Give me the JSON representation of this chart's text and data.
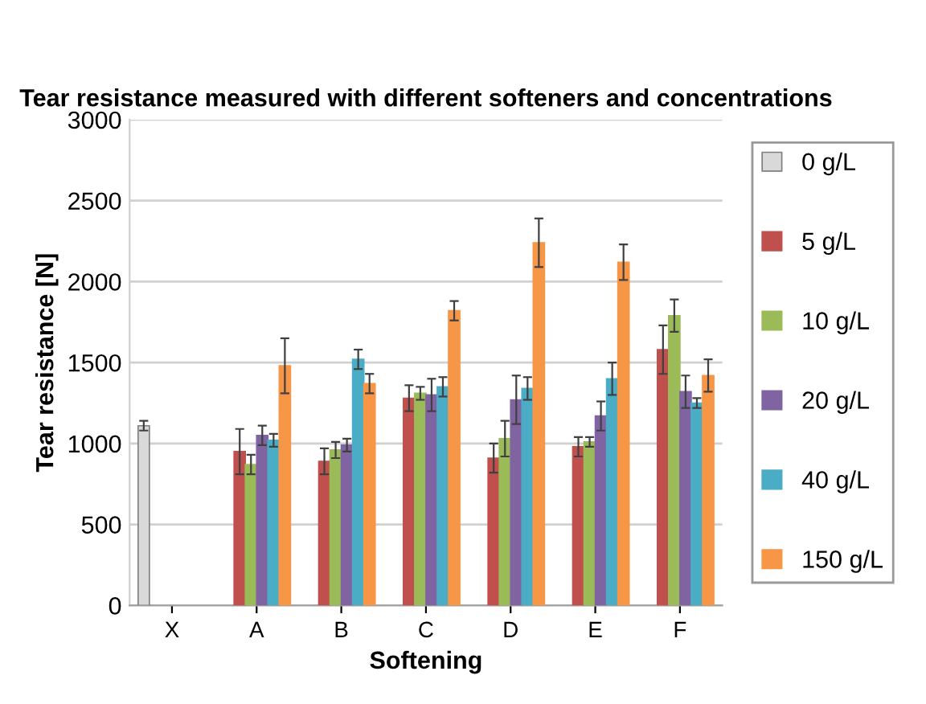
{
  "chart_data": {
    "type": "bar",
    "title": "Tear resistance measured with different softeners and concentrations",
    "xlabel": "Softening",
    "ylabel": "Tear resistance [N]",
    "categories": [
      "X",
      "A",
      "B",
      "C",
      "D",
      "E",
      "F"
    ],
    "series": [
      {
        "name": "0 g/L",
        "color": "#d9d9d9",
        "values": [
          1110,
          null,
          null,
          null,
          null,
          null,
          null
        ],
        "errors": [
          30,
          null,
          null,
          null,
          null,
          null,
          null
        ]
      },
      {
        "name": "5 g/L",
        "color": "#c0504d",
        "values": [
          null,
          950,
          890,
          1280,
          910,
          980,
          1580
        ],
        "errors": [
          null,
          140,
          80,
          80,
          90,
          60,
          150
        ]
      },
      {
        "name": "10 g/L",
        "color": "#9bbb59",
        "values": [
          null,
          870,
          960,
          1310,
          1030,
          1010,
          1790
        ],
        "errors": [
          null,
          60,
          50,
          40,
          110,
          30,
          100
        ]
      },
      {
        "name": "20 g/L",
        "color": "#8064a2",
        "values": [
          null,
          1050,
          990,
          1300,
          1270,
          1170,
          1320
        ],
        "errors": [
          null,
          60,
          40,
          100,
          150,
          90,
          100
        ]
      },
      {
        "name": "40 g/L",
        "color": "#4bacc6",
        "values": [
          null,
          1020,
          1520,
          1350,
          1340,
          1400,
          1250
        ],
        "errors": [
          null,
          40,
          60,
          60,
          70,
          100,
          30
        ]
      },
      {
        "name": "150 g/L",
        "color": "#f79646",
        "values": [
          null,
          1480,
          1370,
          1820,
          2240,
          2120,
          1420
        ],
        "errors": [
          null,
          170,
          60,
          60,
          150,
          110,
          100
        ]
      }
    ],
    "ylim": [
      0,
      3000
    ],
    "yticks": [
      0,
      500,
      1000,
      1500,
      2000,
      2500,
      3000
    ],
    "grid": "y",
    "legend": "right"
  }
}
